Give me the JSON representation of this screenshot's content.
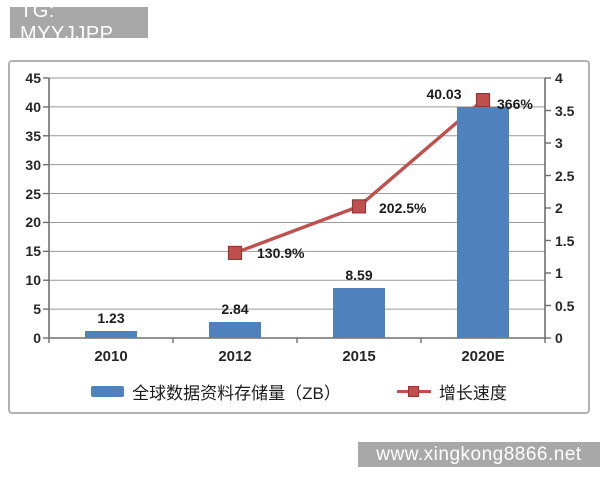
{
  "banners": {
    "top_left": "TG: MYYJJPP",
    "bottom_right": "www.xingkong8866.net"
  },
  "colors": {
    "bar": "#4f81bd",
    "line": "#c0504d",
    "marker_border": "#943634",
    "grid": "#999999",
    "axis": "#6e6e6e",
    "banner_bg": "#a8a8a8",
    "label_text": "#1c1c1c"
  },
  "chart_data": {
    "type": "bar",
    "subtype": "combo-bar-line-dual-axis",
    "categories": [
      "2010",
      "2012",
      "2015",
      "2020E"
    ],
    "series": [
      {
        "name": "全球数据资料存储量（ZB）",
        "chart": "bar",
        "axis": "left",
        "values": [
          1.23,
          2.84,
          8.59,
          40.03
        ],
        "point_labels": [
          "1.23",
          "2.84",
          "8.59",
          "40.03"
        ],
        "color": "#4f81bd"
      },
      {
        "name": "增长速度",
        "chart": "line",
        "axis": "right",
        "marker": "square",
        "values": [
          null,
          1.309,
          2.025,
          3.66
        ],
        "point_labels": [
          "",
          "130.9%",
          "202.5%",
          "366%"
        ],
        "color": "#c0504d"
      }
    ],
    "left_axis": {
      "min": 0,
      "max": 45,
      "step": 5,
      "ticks": [
        "0",
        "5",
        "10",
        "15",
        "20",
        "25",
        "30",
        "35",
        "40",
        "45"
      ]
    },
    "right_axis": {
      "min": 0,
      "max": 4,
      "step": 0.5,
      "ticks": [
        "0",
        "0.5",
        "1",
        "1.5",
        "2",
        "2.5",
        "3",
        "3.5",
        "4"
      ]
    },
    "grid": true,
    "legend_position": "bottom",
    "layout_hints": {
      "bar_label_dx": [
        0,
        0,
        0,
        -39
      ],
      "line_label_dx": [
        0,
        14,
        12,
        6
      ],
      "line_label_dy": [
        0,
        0,
        2,
        4
      ],
      "bars_drawn_over_line": true
    }
  }
}
